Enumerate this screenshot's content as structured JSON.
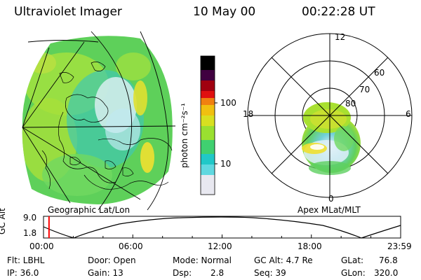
{
  "header": {
    "instrument": "Ultraviolet Imager",
    "date": "10 May 00",
    "time": "00:22:28 UT"
  },
  "colorbar": {
    "unit_label": "photon cm⁻²s⁻¹",
    "ticks": [
      "100",
      "10"
    ],
    "colors": [
      "#e8e8f0",
      "#60d8e0",
      "#20c8c8",
      "#40d070",
      "#9ae030",
      "#d8e020",
      "#f0c010",
      "#f08010",
      "#e01010",
      "#a00010",
      "#400040",
      "#000000"
    ]
  },
  "left_map": {
    "caption": "Geographic Lat/Lon"
  },
  "right_map": {
    "caption": "Apex MLat/MLT",
    "mlt_labels": {
      "top": "12",
      "left": "18",
      "right": "6",
      "bottom": "0"
    },
    "lat_labels": [
      "60",
      "70",
      "80"
    ]
  },
  "altitude_plot": {
    "axis_label": "GC Alt",
    "y_ticks": [
      "9.0",
      "1.8"
    ],
    "x_ticks": [
      "00:00",
      "06:00",
      "12:00",
      "18:00",
      "23:59"
    ],
    "current_marker_hours": 0.37,
    "marker_color": "#ff0000"
  },
  "info": {
    "flt": "Flt: LBHL",
    "ip": "IP: 36.0",
    "door": "Door: Open",
    "gain": "Gain: 13",
    "mode": "Mode: Normal",
    "dsp": "Dsp:",
    "dsp_value": "2.8",
    "gc_alt": "GC Alt: 4.7 Re",
    "seq": "Seq: 39",
    "glat": "GLat:",
    "glat_value": "76.8",
    "glon": "GLon:",
    "glon_value": "320.0"
  }
}
